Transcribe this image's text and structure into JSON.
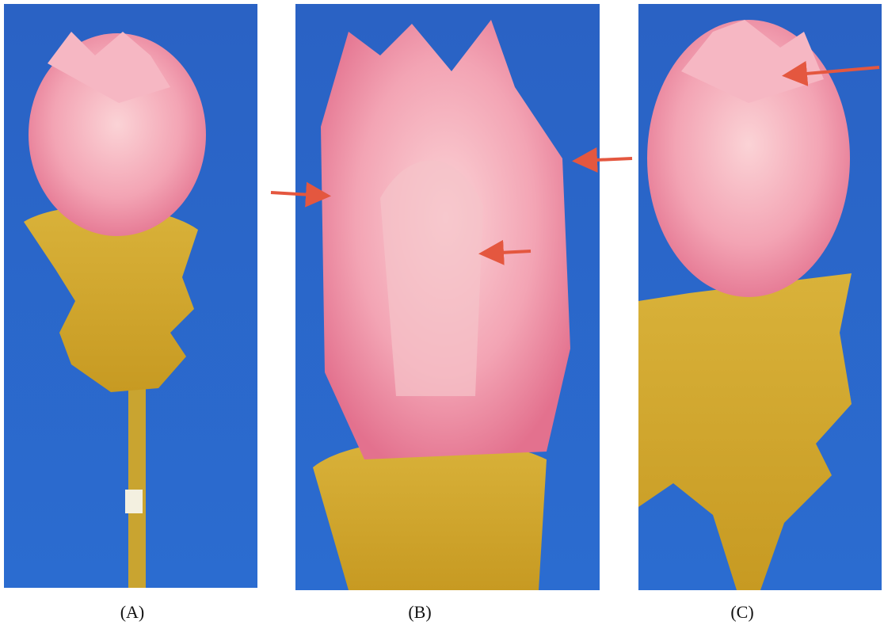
{
  "panels": [
    {
      "label": "(A)"
    },
    {
      "label": "(B)"
    },
    {
      "label": "(C)"
    }
  ]
}
